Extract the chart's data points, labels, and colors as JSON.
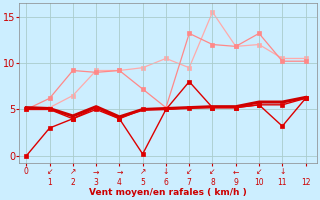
{
  "bg_color": "#cceeff",
  "grid_color": "#aacccc",
  "x_label": "Vent moyen/en rafales ( km/h )",
  "x_ticks": [
    0,
    1,
    2,
    3,
    4,
    5,
    6,
    7,
    8,
    9,
    10,
    11,
    12
  ],
  "y_ticks": [
    0,
    5,
    10,
    15
  ],
  "ylim": [
    -0.8,
    16.5
  ],
  "xlim": [
    -0.3,
    12.5
  ],
  "wind_arrows": [
    "↙",
    "↗",
    "→",
    "→",
    "↗",
    "↓",
    "↙",
    "↙",
    "←",
    "↙",
    "↓"
  ],
  "line_dark1": {
    "x": [
      0,
      1,
      2,
      3,
      4,
      5,
      6,
      7,
      8,
      9,
      10,
      11,
      12
    ],
    "y": [
      0.0,
      3.0,
      4.0,
      5.0,
      4.0,
      0.2,
      5.0,
      8.0,
      5.2,
      5.2,
      5.5,
      3.2,
      6.2
    ],
    "color": "#dd0000",
    "linewidth": 1.0,
    "marker": "s",
    "markersize": 2.5,
    "zorder": 6,
    "linestyle": "-"
  },
  "line_dark2": {
    "x": [
      0,
      1,
      2,
      3,
      4,
      5,
      6,
      7,
      8,
      9,
      10,
      11,
      12
    ],
    "y": [
      5.0,
      5.0,
      4.0,
      5.2,
      4.0,
      5.0,
      5.0,
      5.2,
      5.2,
      5.2,
      5.5,
      5.5,
      6.2
    ],
    "color": "#dd0000",
    "linewidth": 1.0,
    "marker": "s",
    "markersize": 2.5,
    "zorder": 5,
    "linestyle": "-"
  },
  "line_thick": {
    "x": [
      0,
      1,
      2,
      3,
      4,
      5,
      6,
      7,
      8,
      9,
      10,
      11,
      12
    ],
    "y": [
      5.2,
      5.1,
      4.3,
      5.3,
      4.2,
      5.0,
      5.1,
      5.2,
      5.3,
      5.3,
      5.8,
      5.8,
      6.3
    ],
    "color": "#cc0000",
    "linewidth": 2.2,
    "marker": null,
    "markersize": 0,
    "zorder": 4,
    "linestyle": "-"
  },
  "line_light1": {
    "x": [
      0,
      1,
      2,
      3,
      4,
      5,
      6,
      7,
      8,
      9,
      10,
      11,
      12
    ],
    "y": [
      5.0,
      6.2,
      9.2,
      9.0,
      9.2,
      7.2,
      5.2,
      13.2,
      12.0,
      11.8,
      13.2,
      10.2,
      10.2
    ],
    "color": "#ff8888",
    "linewidth": 0.9,
    "marker": "s",
    "markersize": 2.5,
    "zorder": 2,
    "linestyle": "-"
  },
  "line_light2": {
    "x": [
      0,
      1,
      2,
      3,
      4,
      5,
      6,
      7,
      8,
      9,
      10,
      11,
      12
    ],
    "y": [
      5.0,
      5.2,
      6.5,
      9.2,
      9.2,
      9.5,
      10.5,
      9.5,
      15.5,
      11.8,
      12.0,
      10.5,
      10.5
    ],
    "color": "#ffaaaa",
    "linewidth": 0.9,
    "marker": "s",
    "markersize": 2.5,
    "zorder": 1,
    "linestyle": "-"
  }
}
